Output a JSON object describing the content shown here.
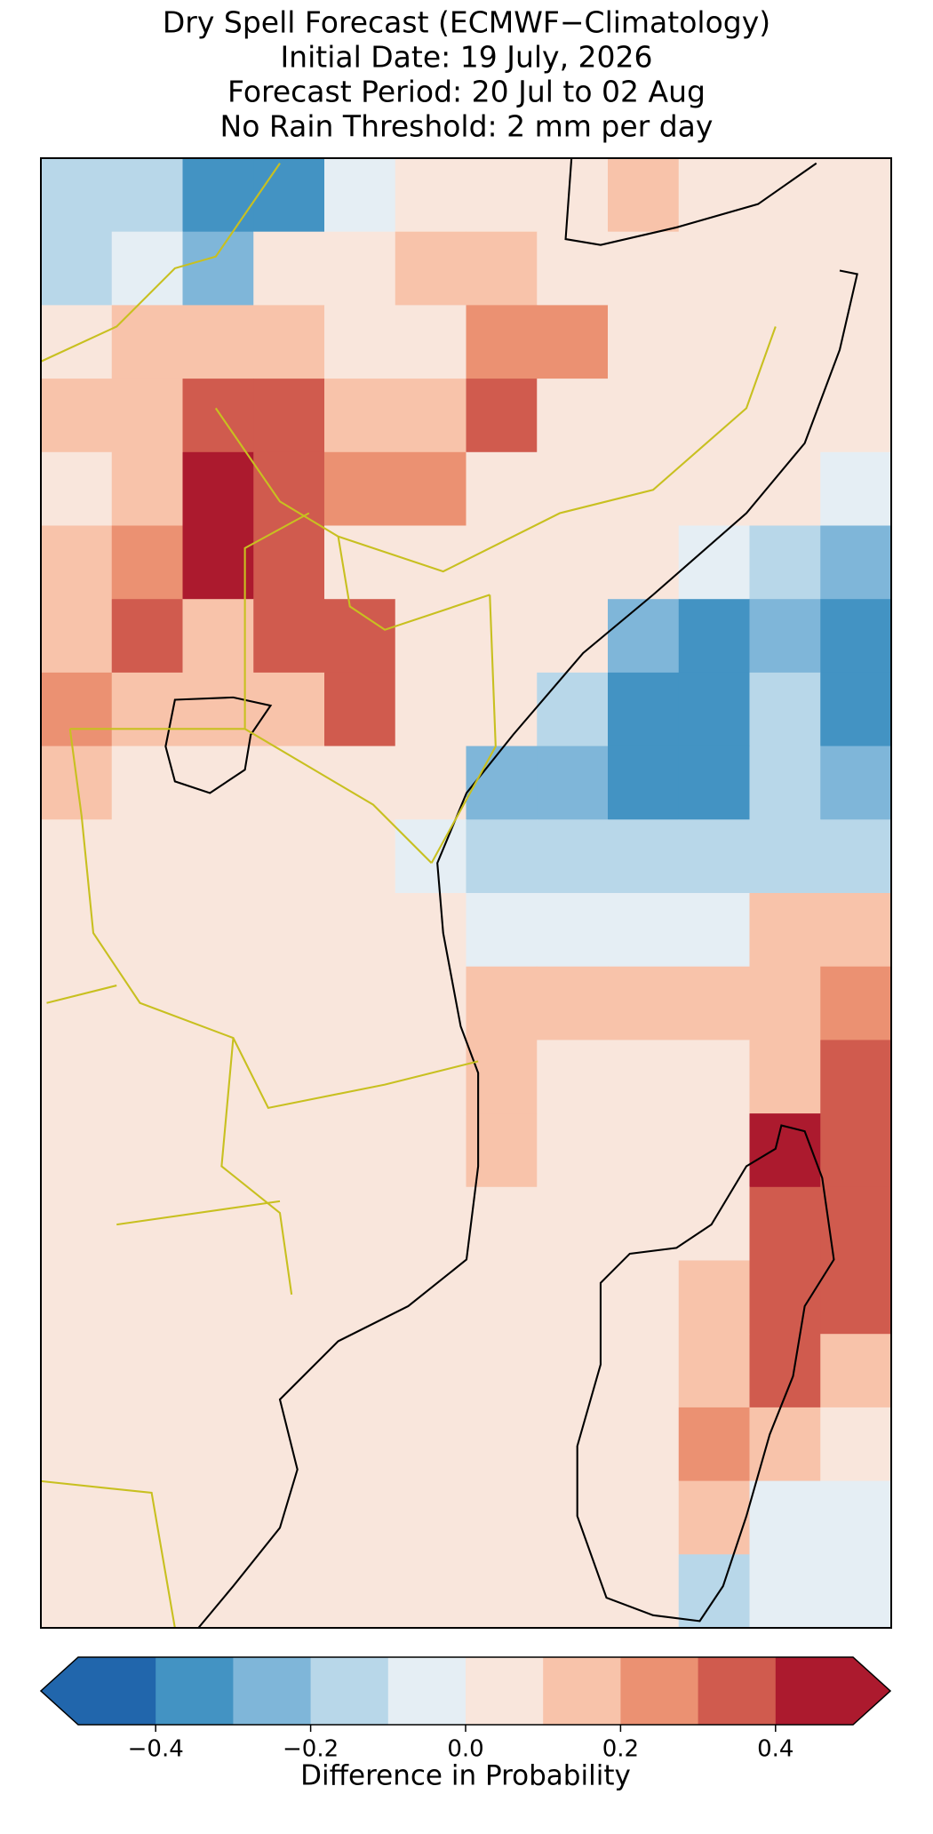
{
  "chart_data": {
    "type": "map",
    "title": [
      "Dry Spell Forecast (ECMWF−Climatology)",
      "Initial Date: 19 July, 2026",
      "Forecast Period: 20 Jul to 02 Aug",
      "No Rain Threshold: 2 mm per day"
    ],
    "grid": [
      [
        -0.15,
        -0.2,
        -0.4,
        -0.35,
        -0.05,
        0.05,
        0.05,
        0.05,
        0.15,
        0.05,
        0.05,
        0.05
      ],
      [
        -0.2,
        -0.1,
        -0.25,
        0.05,
        0.05,
        0.1,
        0.15,
        0.05,
        0.05,
        0.05,
        0.05,
        0.05
      ],
      [
        0.05,
        0.15,
        0.15,
        0.1,
        0.05,
        0.05,
        0.25,
        0.2,
        0.05,
        0.05,
        0.05,
        0.05
      ],
      [
        0.1,
        0.15,
        0.3,
        0.35,
        0.1,
        0.1,
        0.35,
        0.05,
        0.05,
        0.05,
        0.05,
        0.05
      ],
      [
        0.05,
        0.15,
        0.45,
        0.35,
        0.2,
        0.2,
        0.05,
        0.05,
        0.05,
        0.05,
        0.05,
        -0.05
      ],
      [
        0.1,
        0.2,
        0.4,
        0.35,
        0.05,
        0.05,
        0.05,
        0.05,
        0.05,
        -0.05,
        -0.15,
        -0.3
      ],
      [
        0.15,
        0.3,
        0.15,
        0.35,
        0.3,
        0.05,
        0.05,
        0.05,
        -0.3,
        -0.35,
        -0.3,
        -0.4
      ],
      [
        0.25,
        0.15,
        0.15,
        0.1,
        0.35,
        0.05,
        0.05,
        -0.2,
        -0.35,
        -0.4,
        -0.2,
        -0.35
      ],
      [
        0.15,
        0.05,
        0.05,
        0.05,
        0.05,
        0.05,
        -0.3,
        -0.3,
        -0.35,
        -0.4,
        -0.2,
        -0.25
      ],
      [
        0.05,
        0.05,
        0.05,
        0.05,
        0.05,
        -0.1,
        -0.2,
        -0.2,
        -0.15,
        -0.2,
        -0.15,
        -0.15
      ],
      [
        0.05,
        0.05,
        0.05,
        0.05,
        0.05,
        0.05,
        -0.05,
        -0.1,
        -0.05,
        -0.05,
        0.1,
        0.15
      ],
      [
        0.05,
        0.05,
        0.05,
        0.05,
        0.05,
        0.05,
        0.1,
        0.1,
        0.15,
        0.1,
        0.15,
        0.2
      ],
      [
        0.05,
        0.05,
        0.05,
        0.05,
        0.05,
        0.05,
        0.1,
        0.05,
        0.05,
        0.05,
        0.15,
        0.35
      ],
      [
        0.05,
        0.05,
        0.05,
        0.05,
        0.05,
        0.05,
        0.1,
        0.05,
        0.05,
        0.05,
        0.45,
        0.3
      ],
      [
        0.05,
        0.05,
        0.05,
        0.05,
        0.05,
        0.05,
        0.05,
        0.05,
        0.05,
        0.05,
        0.35,
        0.3
      ],
      [
        0.05,
        0.05,
        0.05,
        0.05,
        0.05,
        0.05,
        0.05,
        0.05,
        0.05,
        0.1,
        0.35,
        0.3
      ],
      [
        0.05,
        0.05,
        0.05,
        0.05,
        0.05,
        0.05,
        0.05,
        0.05,
        0.05,
        0.15,
        0.3,
        0.15
      ],
      [
        0.05,
        0.05,
        0.05,
        0.05,
        0.05,
        0.05,
        0.05,
        0.05,
        0.05,
        0.2,
        0.15,
        0.05
      ],
      [
        0.05,
        0.05,
        0.05,
        0.05,
        0.05,
        0.05,
        0.05,
        0.05,
        0.05,
        0.15,
        -0.1,
        -0.05
      ],
      [
        0.05,
        0.05,
        0.05,
        0.05,
        0.05,
        0.05,
        0.05,
        0.05,
        0.05,
        -0.15,
        -0.1,
        -0.05
      ]
    ],
    "colorbar": {
      "levels": [
        -0.5,
        -0.4,
        -0.3,
        -0.2,
        -0.1,
        0,
        0.1,
        0.2,
        0.3,
        0.4,
        0.5
      ],
      "colors": [
        "#2166ac",
        "#4393c3",
        "#7fb6d9",
        "#b8d7e9",
        "#e5eef4",
        "#f9e6dc",
        "#f8c3aa",
        "#eb9172",
        "#d05b4e",
        "#ac1a2e"
      ],
      "extend": "both",
      "ticks": [
        {
          "value": -0.4,
          "label": "−0.4"
        },
        {
          "value": -0.2,
          "label": "−0.2"
        },
        {
          "value": 0,
          "label": "0.0"
        },
        0.2,
        0.4
      ],
      "label": "Difference in Probability"
    }
  }
}
